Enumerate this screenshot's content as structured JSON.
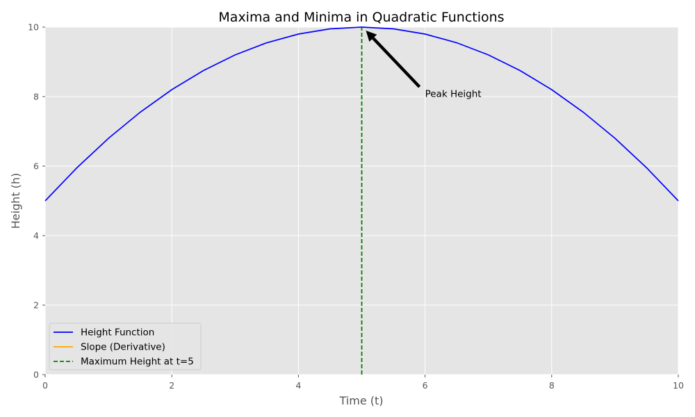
{
  "chart_data": {
    "type": "line",
    "title": "Maxima and Minima in Quadratic Functions",
    "xlabel": "Time (t)",
    "ylabel": "Height (h)",
    "xlim": [
      0,
      10
    ],
    "ylim": [
      0,
      10
    ],
    "xticks": [
      0,
      2,
      4,
      6,
      8,
      10
    ],
    "yticks": [
      0,
      2,
      4,
      6,
      8,
      10
    ],
    "grid": true,
    "legend_position": "lower-left",
    "series": [
      {
        "name": "Height Function",
        "color": "#0000ff",
        "style": "solid",
        "x": [
          0,
          0.5,
          1,
          1.5,
          2,
          2.5,
          3,
          3.5,
          4,
          4.5,
          5,
          5.5,
          6,
          6.5,
          7,
          7.5,
          8,
          8.5,
          9,
          9.5,
          10
        ],
        "y": [
          5,
          5.95,
          6.8,
          7.55,
          8.2,
          8.75,
          9.2,
          9.55,
          9.8,
          9.95,
          10,
          9.95,
          9.8,
          9.55,
          9.2,
          8.75,
          8.2,
          7.55,
          6.8,
          5.95,
          5
        ]
      },
      {
        "name": "Slope (Derivative)",
        "color": "#ffa500",
        "style": "solid",
        "x": [],
        "y": []
      },
      {
        "name": "Maximum Height at t=5",
        "color": "#008000",
        "style": "dashed",
        "x": [
          5,
          5
        ],
        "y": [
          0,
          10
        ]
      }
    ],
    "annotations": [
      {
        "text": "Peak Height",
        "x": 6,
        "y": 8,
        "arrow_to": {
          "x": 5,
          "y": 10
        }
      }
    ]
  }
}
